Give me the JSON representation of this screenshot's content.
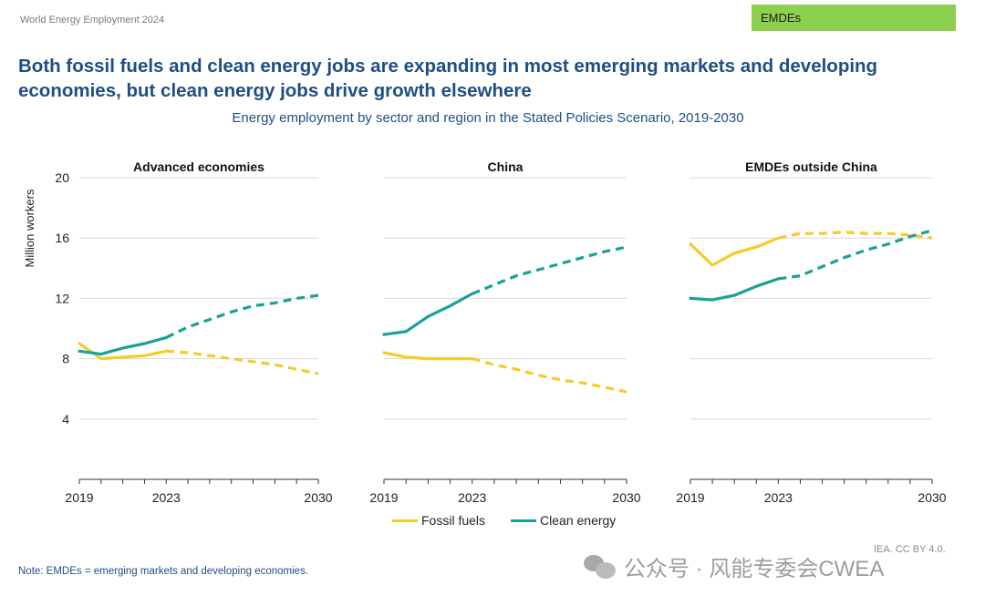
{
  "header": {
    "report_name": "World Energy Employment 2024",
    "region_tag": "EMDEs",
    "region_tag_color": "#8dcf4f",
    "headline": "Both fossil fuels and clean energy jobs are expanding in most emerging markets and developing economies, but clean energy jobs drive growth elsewhere",
    "subtitle": "Energy employment by sector and region in the Stated Policies Scenario, 2019-2030"
  },
  "legend": [
    {
      "label": "Fossil fuels",
      "color": "#f5cc2a"
    },
    {
      "label": "Clean energy",
      "color": "#17a398"
    }
  ],
  "footer": {
    "note": "Note: EMDEs = emerging markets and developing economies.",
    "credit": "IEA. CC BY 4.0.",
    "watermark": "公众号 · 风能专委会CWEA"
  },
  "chart_data": {
    "type": "line",
    "ylabel": "Million workers",
    "ylim": [
      0,
      20
    ],
    "yticks": [
      4,
      8,
      12,
      16,
      20
    ],
    "xlim": [
      2019,
      2030
    ],
    "xtick_labels": [
      "2019",
      "2023",
      "2030"
    ],
    "projection_start": 2023,
    "grid": true,
    "series_names": [
      "Fossil fuels",
      "Clean energy"
    ],
    "series_colors": [
      "#f5cc2a",
      "#17a398"
    ],
    "x": [
      2019,
      2020,
      2021,
      2022,
      2023,
      2024,
      2025,
      2026,
      2027,
      2028,
      2029,
      2030
    ],
    "panels": [
      {
        "title": "Advanced economies",
        "series": [
          {
            "name": "Fossil fuels",
            "values": [
              9.0,
              8.0,
              8.1,
              8.2,
              8.5,
              8.4,
              8.2,
              8.0,
              7.8,
              7.6,
              7.3,
              7.0
            ]
          },
          {
            "name": "Clean energy",
            "values": [
              8.5,
              8.3,
              8.7,
              9.0,
              9.4,
              10.1,
              10.6,
              11.1,
              11.5,
              11.7,
              12.0,
              12.2
            ]
          }
        ]
      },
      {
        "title": "China",
        "series": [
          {
            "name": "Fossil fuels",
            "values": [
              8.4,
              8.1,
              8.0,
              8.0,
              8.0,
              7.6,
              7.3,
              6.9,
              6.6,
              6.4,
              6.1,
              5.8
            ]
          },
          {
            "name": "Clean energy",
            "values": [
              9.6,
              9.8,
              10.8,
              11.5,
              12.3,
              12.9,
              13.5,
              13.9,
              14.3,
              14.7,
              15.1,
              15.4
            ]
          }
        ]
      },
      {
        "title": "EMDEs outside China",
        "series": [
          {
            "name": "Fossil fuels",
            "values": [
              15.6,
              14.2,
              15.0,
              15.4,
              16.0,
              16.3,
              16.3,
              16.4,
              16.3,
              16.3,
              16.2,
              16.0
            ]
          },
          {
            "name": "Clean energy",
            "values": [
              12.0,
              11.9,
              12.2,
              12.8,
              13.3,
              13.5,
              14.1,
              14.7,
              15.2,
              15.6,
              16.1,
              16.5
            ]
          }
        ]
      }
    ]
  }
}
